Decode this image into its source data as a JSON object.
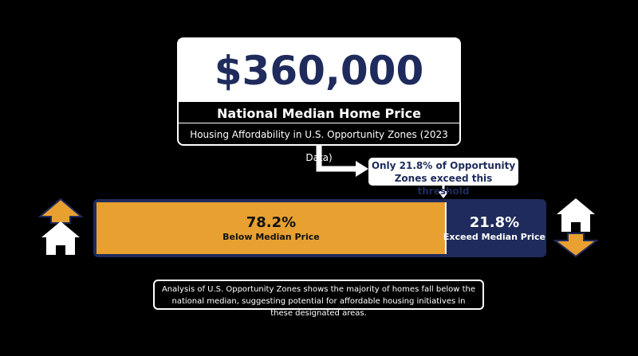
{
  "chart_data": {
    "type": "stacked-bar",
    "title": "$360,000",
    "subtitle": "National Median Home Price",
    "caption": "Housing Affordability in U.S. Opportunity Zones (2023 Data)",
    "annotation": "Only 21.8% of Opportunity Zones exceed this threshold",
    "note": "Analysis of U.S. Opportunity Zones shows the majority of homes fall below the national median, suggesting potential for affordable housing initiatives in these designated areas.",
    "series": [
      {
        "name": "Below Median Price",
        "color": "#e8a030",
        "text_color": "#111111",
        "values": [
          78.2
        ],
        "value_labels": [
          "78.2%"
        ]
      },
      {
        "name": "Exceed Median Price",
        "color": "#1f2b5c",
        "text_color": "#ffffff",
        "values": [
          21.8
        ],
        "value_labels": [
          "21.8%"
        ]
      }
    ]
  }
}
